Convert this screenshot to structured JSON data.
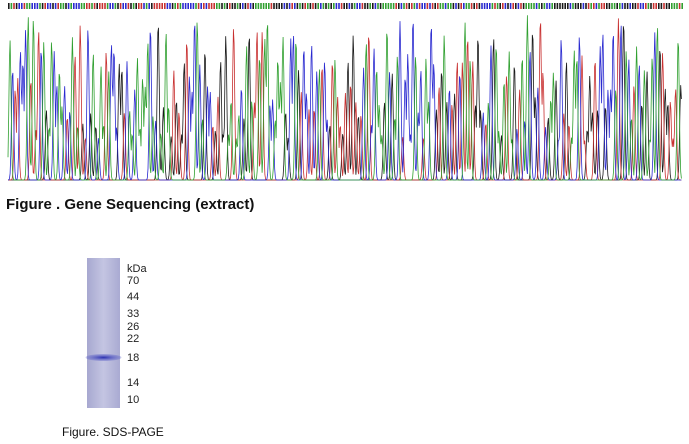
{
  "figures": [
    {
      "caption": "Figure . Gene Sequencing (extract)"
    },
    {
      "caption": "Figure. SDS-PAGE",
      "unit": "kDa",
      "markers": [
        70,
        44,
        33,
        26,
        22,
        18,
        14,
        10
      ]
    }
  ]
}
